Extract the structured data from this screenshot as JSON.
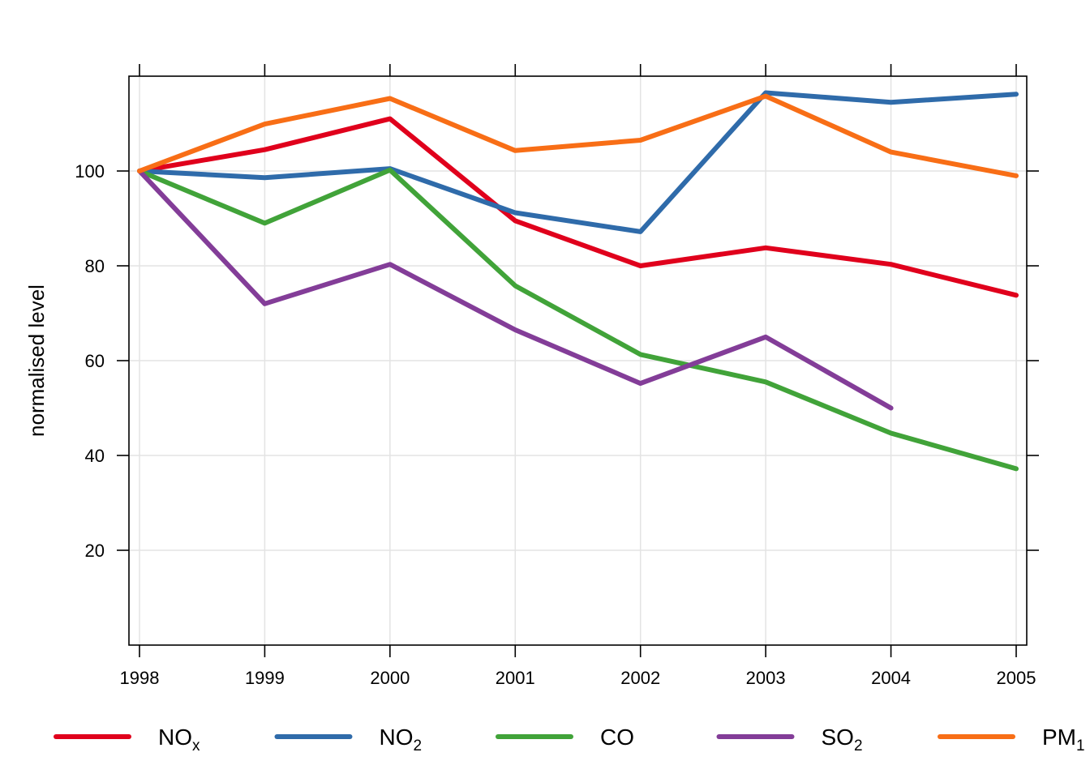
{
  "chart_data": {
    "type": "line",
    "title": "",
    "xlabel": "",
    "ylabel": "normalised level",
    "x": [
      1998,
      1999,
      2000,
      2001,
      2002,
      2003,
      2004,
      2005
    ],
    "x_tick_labels": [
      "1998",
      "1999",
      "2000",
      "2001",
      "2002",
      "2003",
      "2004",
      "2005"
    ],
    "y_ticks": [
      20,
      40,
      60,
      80,
      100
    ],
    "y_tick_labels": [
      "20",
      "40",
      "60",
      "80",
      "100"
    ],
    "xlim": [
      1997.9,
      2005.1
    ],
    "ylim": [
      0,
      120
    ],
    "grid": true,
    "legend_position": "bottom",
    "series": [
      {
        "name": "NOx",
        "label_main": "NO",
        "label_sub": "x",
        "color": "#e0001c",
        "values": [
          100,
          104.5,
          111,
          89.5,
          80,
          83.8,
          80.3,
          73.8
        ]
      },
      {
        "name": "NO2",
        "label_main": "NO",
        "label_sub": "2",
        "color": "#2f6baa",
        "values": [
          100,
          98.6,
          100.5,
          91.2,
          87.2,
          116.5,
          114.5,
          116.2
        ]
      },
      {
        "name": "CO",
        "label_main": "CO",
        "label_sub": "",
        "color": "#41a339",
        "values": [
          100,
          89,
          100.2,
          75.8,
          61.3,
          55.5,
          44.7,
          37.2
        ]
      },
      {
        "name": "SO2",
        "label_main": "SO",
        "label_sub": "2",
        "color": "#833d98",
        "values": [
          100,
          72,
          80.3,
          66.5,
          55.2,
          65,
          50,
          null
        ]
      },
      {
        "name": "PM1",
        "label_main": "PM",
        "label_sub": "1",
        "color": "#f86e16",
        "values": [
          100,
          109.9,
          115.3,
          104.3,
          106.5,
          115.8,
          104,
          99
        ]
      }
    ]
  }
}
